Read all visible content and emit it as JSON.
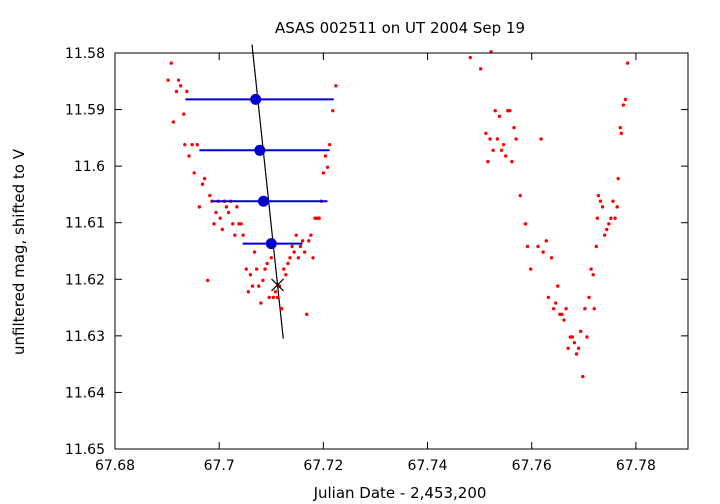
{
  "chart_data": {
    "type": "scatter",
    "title": "ASAS 002511 on UT 2004 Sep 19",
    "xlabel": "Julian Date - 2,453,200",
    "ylabel": "unfiltered mag, shifted to V",
    "xlim": [
      67.68,
      67.79
    ],
    "ylim": [
      11.58,
      11.65
    ],
    "y_inverted": true,
    "xticks": [
      67.68,
      67.7,
      67.72,
      67.74,
      67.76,
      67.78
    ],
    "xtick_labels": [
      "67.68",
      "67.7",
      "67.72",
      "67.74",
      "67.76",
      "67.78"
    ],
    "yticks": [
      11.58,
      11.59,
      11.6,
      11.61,
      11.62,
      11.63,
      11.64,
      11.65
    ],
    "ytick_labels": [
      "11.58",
      "11.59",
      "11.6",
      "11.61",
      "11.62",
      "11.63",
      "11.64",
      "11.65"
    ],
    "colors": {
      "points": "#ff0000",
      "means": "#0000cc",
      "fit": "#000000"
    },
    "series": [
      {
        "marker": "dot",
        "points": [
          [
            67.6902,
            11.5848
          ],
          [
            67.6908,
            11.5818
          ],
          [
            67.6912,
            11.5922
          ],
          [
            67.6918,
            11.5868
          ],
          [
            67.6922,
            11.5848
          ],
          [
            67.6926,
            11.5858
          ],
          [
            67.6932,
            11.5908
          ],
          [
            67.6934,
            11.5962
          ],
          [
            67.6938,
            11.5868
          ],
          [
            67.6942,
            11.5982
          ],
          [
            67.6948,
            11.5962
          ],
          [
            67.6952,
            11.6012
          ],
          [
            67.6958,
            11.5962
          ],
          [
            67.6962,
            11.6072
          ],
          [
            67.6968,
            11.6032
          ],
          [
            67.6972,
            11.6022
          ],
          [
            67.6978,
            11.6202
          ],
          [
            67.6982,
            11.6052
          ],
          [
            67.6986,
            11.6062
          ],
          [
            67.699,
            11.6102
          ],
          [
            67.6994,
            11.6082
          ],
          [
            67.6998,
            11.6062
          ],
          [
            67.7002,
            11.6092
          ],
          [
            67.7006,
            11.6112
          ],
          [
            67.701,
            11.6062
          ],
          [
            67.7014,
            11.6072
          ],
          [
            67.7018,
            11.6082
          ],
          [
            67.7022,
            11.6062
          ],
          [
            67.7026,
            11.6102
          ],
          [
            67.703,
            11.6122
          ],
          [
            67.7034,
            11.6072
          ],
          [
            67.7038,
            11.6102
          ],
          [
            67.7042,
            11.6102
          ],
          [
            67.7046,
            11.6122
          ],
          [
            67.7052,
            11.6182
          ],
          [
            67.7056,
            11.6222
          ],
          [
            67.706,
            11.6192
          ],
          [
            67.7064,
            11.6212
          ],
          [
            67.7068,
            11.6152
          ],
          [
            67.7072,
            11.6182
          ],
          [
            67.7076,
            11.6212
          ],
          [
            67.708,
            11.6242
          ],
          [
            67.7084,
            11.6202
          ],
          [
            67.7088,
            11.6182
          ],
          [
            67.7092,
            11.6172
          ],
          [
            67.7096,
            11.6232
          ],
          [
            67.71,
            11.6162
          ],
          [
            67.7104,
            11.6232
          ],
          [
            67.7108,
            11.6222
          ],
          [
            67.7112,
            11.6232
          ],
          [
            67.7116,
            11.6212
          ],
          [
            67.712,
            11.6252
          ],
          [
            67.7124,
            11.6182
          ],
          [
            67.7128,
            11.6192
          ],
          [
            67.7132,
            11.6172
          ],
          [
            67.7136,
            11.6162
          ],
          [
            67.714,
            11.6142
          ],
          [
            67.7144,
            11.6152
          ],
          [
            67.7148,
            11.6122
          ],
          [
            67.7152,
            11.6162
          ],
          [
            67.7156,
            11.6142
          ],
          [
            67.716,
            11.6132
          ],
          [
            67.7164,
            11.6152
          ],
          [
            67.7168,
            11.6262
          ],
          [
            67.7172,
            11.6132
          ],
          [
            67.7176,
            11.6122
          ],
          [
            67.718,
            11.6162
          ],
          [
            67.7184,
            11.6092
          ],
          [
            67.7188,
            11.6092
          ],
          [
            67.7192,
            11.6092
          ],
          [
            67.7196,
            11.6062
          ],
          [
            67.72,
            11.6012
          ],
          [
            67.7204,
            11.5982
          ],
          [
            67.7208,
            11.6002
          ],
          [
            67.7212,
            11.5962
          ],
          [
            67.7218,
            11.5902
          ],
          [
            67.7224,
            11.5858
          ],
          [
            67.7482,
            11.5808
          ],
          [
            67.7502,
            11.5828
          ],
          [
            67.7512,
            11.5942
          ],
          [
            67.7516,
            11.5992
          ],
          [
            67.752,
            11.5952
          ],
          [
            67.7522,
            11.5798
          ],
          [
            67.7526,
            11.5972
          ],
          [
            67.753,
            11.5902
          ],
          [
            67.7534,
            11.5952
          ],
          [
            67.7538,
            11.5912
          ],
          [
            67.7542,
            11.5972
          ],
          [
            67.7546,
            11.5962
          ],
          [
            67.755,
            11.5982
          ],
          [
            67.7554,
            11.5902
          ],
          [
            67.7558,
            11.5902
          ],
          [
            67.7562,
            11.5992
          ],
          [
            67.7566,
            11.5932
          ],
          [
            67.757,
            11.5952
          ],
          [
            67.7578,
            11.6052
          ],
          [
            67.7588,
            11.6102
          ],
          [
            67.7592,
            11.6142
          ],
          [
            67.7598,
            11.6182
          ],
          [
            67.7612,
            11.6142
          ],
          [
            67.7618,
            11.5952
          ],
          [
            67.7622,
            11.6152
          ],
          [
            67.7628,
            11.6132
          ],
          [
            67.7632,
            11.6232
          ],
          [
            67.7638,
            11.6162
          ],
          [
            67.7642,
            11.6252
          ],
          [
            67.7646,
            11.6242
          ],
          [
            67.765,
            11.6212
          ],
          [
            67.7654,
            11.6262
          ],
          [
            67.7658,
            11.6262
          ],
          [
            67.7662,
            11.6272
          ],
          [
            67.7666,
            11.6252
          ],
          [
            67.767,
            11.6322
          ],
          [
            67.7674,
            11.6302
          ],
          [
            67.7678,
            11.6302
          ],
          [
            67.7682,
            11.6312
          ],
          [
            67.7686,
            11.6332
          ],
          [
            67.769,
            11.6322
          ],
          [
            67.7694,
            11.6292
          ],
          [
            67.7698,
            11.6372
          ],
          [
            67.7702,
            11.6252
          ],
          [
            67.7706,
            11.6302
          ],
          [
            67.771,
            11.6232
          ],
          [
            67.7714,
            11.6182
          ],
          [
            67.7718,
            11.6192
          ],
          [
            67.772,
            11.6252
          ],
          [
            67.7724,
            11.6142
          ],
          [
            67.7726,
            11.6092
          ],
          [
            67.7728,
            11.6052
          ],
          [
            67.7732,
            11.6062
          ],
          [
            67.7736,
            11.6072
          ],
          [
            67.774,
            11.6122
          ],
          [
            67.7744,
            11.6112
          ],
          [
            67.7748,
            11.6102
          ],
          [
            67.7752,
            11.6092
          ],
          [
            67.7756,
            11.6062
          ],
          [
            67.776,
            11.6092
          ],
          [
            67.7764,
            11.6072
          ],
          [
            67.7766,
            11.6022
          ],
          [
            67.777,
            11.5932
          ],
          [
            67.7772,
            11.5942
          ],
          [
            67.7776,
            11.5892
          ],
          [
            67.778,
            11.5882
          ],
          [
            67.7784,
            11.5818
          ]
        ]
      },
      {
        "marker": "circle-with-xerror",
        "points": [
          {
            "x": 67.707,
            "y": 11.5882,
            "xmin": 67.6935,
            "xmax": 67.722
          },
          {
            "x": 67.7078,
            "y": 11.5972,
            "xmin": 67.6962,
            "xmax": 67.7212
          },
          {
            "x": 67.7085,
            "y": 11.6062,
            "xmin": 67.6985,
            "xmax": 67.7208
          },
          {
            "x": 67.71,
            "y": 11.6137,
            "xmin": 67.7045,
            "xmax": 67.716
          }
        ]
      }
    ],
    "fit_line": {
      "start": [
        67.7063,
        11.5785
      ],
      "end": [
        67.7123,
        11.6305
      ]
    },
    "fit_marker": {
      "x": 67.7112,
      "y": 11.621,
      "marker": "x"
    }
  }
}
